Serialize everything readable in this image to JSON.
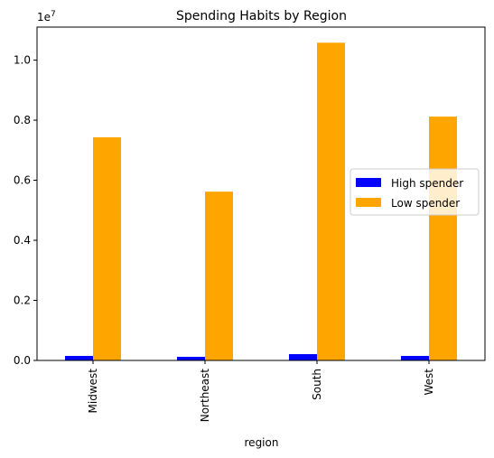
{
  "chart_data": {
    "type": "bar",
    "title": "Spending Habits by Region",
    "xlabel": "region",
    "ylabel": "",
    "y_offset_label": "1e7",
    "categories": [
      "Midwest",
      "Northeast",
      "South",
      "West"
    ],
    "series": [
      {
        "name": "High spender",
        "color": "#0000ff",
        "values": [
          150000,
          120000,
          210000,
          150000
        ]
      },
      {
        "name": "Low spender",
        "color": "#ffa500",
        "values": [
          7430000,
          5620000,
          10580000,
          8120000
        ]
      }
    ],
    "ylim": [
      0,
      11100000
    ],
    "yticks": [
      {
        "value": 0,
        "label": "0.0"
      },
      {
        "value": 2000000,
        "label": "0.2"
      },
      {
        "value": 4000000,
        "label": "0.4"
      },
      {
        "value": 6000000,
        "label": "0.6"
      },
      {
        "value": 8000000,
        "label": "0.8"
      },
      {
        "value": 10000000,
        "label": "1.0"
      }
    ],
    "legend_position": "right",
    "grid": false
  }
}
